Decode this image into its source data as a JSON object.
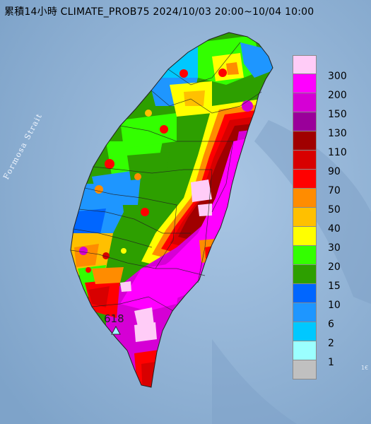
{
  "title": "累積14小時 CLIMATE_PROB75 2024/10/03 20:00~10/04 10:00",
  "map_label": "Formosa Strait",
  "station": {
    "value": "618",
    "marker": "triangle-station-icon"
  },
  "corner_text": "1€",
  "legend": [
    {
      "label": "300",
      "color": "#ffccf7"
    },
    {
      "label": "200",
      "color": "#ff00ff"
    },
    {
      "label": "150",
      "color": "#d500d5"
    },
    {
      "label": "130",
      "color": "#9a009a"
    },
    {
      "label": "110",
      "color": "#a00000"
    },
    {
      "label": "90",
      "color": "#d80000"
    },
    {
      "label": "70",
      "color": "#ff0000"
    },
    {
      "label": "50",
      "color": "#ff8c00"
    },
    {
      "label": "40",
      "color": "#ffc000"
    },
    {
      "label": "30",
      "color": "#ffff00"
    },
    {
      "label": "20",
      "color": "#33ff00"
    },
    {
      "label": "15",
      "color": "#2d9f00"
    },
    {
      "label": "10",
      "color": "#0066ff"
    },
    {
      "label": "6",
      "color": "#1e96ff"
    },
    {
      "label": "2",
      "color": "#00c8ff"
    },
    {
      "label": "1",
      "color": "#9bffff"
    },
    {
      "label": "",
      "color": "#c0c0c0"
    }
  ]
}
